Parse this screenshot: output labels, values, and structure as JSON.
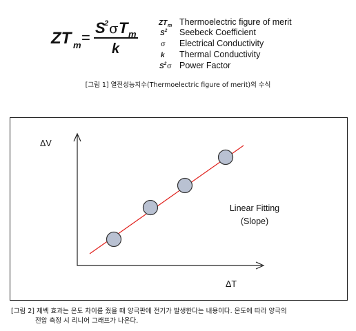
{
  "formula": {
    "lhs": "ZT",
    "lhs_sub": "m",
    "equals": "=",
    "numerator": {
      "base": "S",
      "sup": "2",
      "sigma": "σ",
      "t": "T",
      "t_sub": "m"
    },
    "denominator": "k"
  },
  "legend": [
    {
      "symbol": "ZT",
      "symbol_sub": "m",
      "label": "Thermoelectric figure of merit"
    },
    {
      "symbol": "S",
      "symbol_sup": "2",
      "label": "Seebeck Coefficient"
    },
    {
      "symbol": "σ",
      "label": "Electrical Conductivity"
    },
    {
      "symbol": "k",
      "label": "Thermal Conductivity"
    },
    {
      "symbol": "S",
      "symbol_sup": "2",
      "symbol_tail": "σ",
      "label": "Power Factor"
    }
  ],
  "caption1": "[그림 1] 열전성능지수(Thermoelectric figure of merit)의 수식",
  "diagram": {
    "y_label": "ΔV",
    "x_label": "ΔT",
    "fit_label": [
      "Linear Fitting",
      "(Slope)"
    ]
  },
  "caption2": [
    "[그림 2] 제벡 효과는 온도 차이를 줬을 때 양극판에 전기가 발생한다는 내용이다. 온도에 따라 양극의",
    "전압 측정 시 리니어 그래프가 나온다."
  ]
}
